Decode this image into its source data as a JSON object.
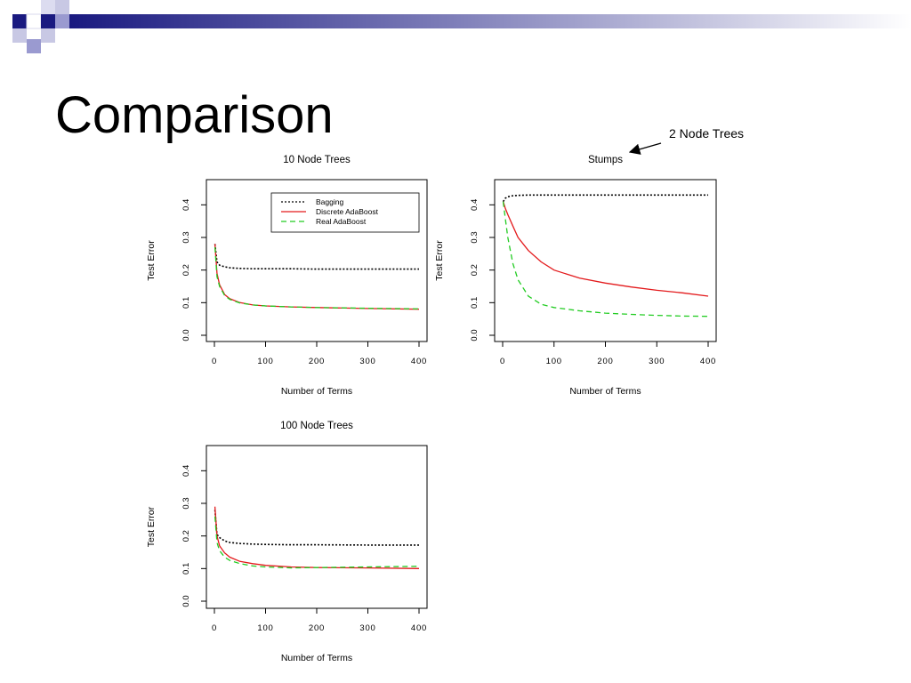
{
  "slide": {
    "title": "Comparison",
    "callout": "2 Node Trees"
  },
  "legend": [
    {
      "name": "Bagging",
      "color": "#000000",
      "style": "dotted"
    },
    {
      "name": "Discrete AdaBoost",
      "color": "#e31a1c",
      "style": "solid"
    },
    {
      "name": "Real AdaBoost",
      "color": "#22cc22",
      "style": "dashed"
    }
  ],
  "chart_data": [
    {
      "type": "line",
      "title": "10 Node Trees",
      "xlabel": "Number of Terms",
      "ylabel": "Test Error",
      "xlim": [
        0,
        400
      ],
      "ylim": [
        0,
        0.45
      ],
      "xticks": [
        "0",
        "100",
        "200",
        "300",
        "400"
      ],
      "yticks": [
        "0.0",
        "0.1",
        "0.2",
        "0.3",
        "0.4"
      ],
      "legend_position": "top-right",
      "grid": false,
      "x": [
        1,
        5,
        10,
        20,
        30,
        50,
        75,
        100,
        150,
        200,
        300,
        400
      ],
      "series": [
        {
          "name": "Bagging",
          "values": [
            0.28,
            0.225,
            0.215,
            0.21,
            0.207,
            0.205,
            0.204,
            0.204,
            0.204,
            0.203,
            0.203,
            0.203
          ]
        },
        {
          "name": "Discrete AdaBoost",
          "values": [
            0.28,
            0.19,
            0.155,
            0.125,
            0.112,
            0.1,
            0.093,
            0.09,
            0.087,
            0.085,
            0.082,
            0.08
          ]
        },
        {
          "name": "Real AdaBoost",
          "values": [
            0.27,
            0.18,
            0.15,
            0.122,
            0.11,
            0.099,
            0.093,
            0.09,
            0.087,
            0.085,
            0.083,
            0.081
          ]
        }
      ]
    },
    {
      "type": "line",
      "title": "Stumps",
      "xlabel": "Number of Terms",
      "ylabel": "Test Error",
      "xlim": [
        0,
        400
      ],
      "ylim": [
        0,
        0.45
      ],
      "xticks": [
        "0",
        "100",
        "200",
        "300",
        "400"
      ],
      "yticks": [
        "0.0",
        "0.1",
        "0.2",
        "0.3",
        "0.4"
      ],
      "grid": false,
      "x": [
        1,
        5,
        10,
        20,
        30,
        50,
        75,
        100,
        150,
        200,
        250,
        300,
        350,
        400
      ],
      "series": [
        {
          "name": "Bagging",
          "values": [
            0.41,
            0.42,
            0.425,
            0.428,
            0.429,
            0.43,
            0.43,
            0.43,
            0.43,
            0.43,
            0.43,
            0.43,
            0.43,
            0.43
          ]
        },
        {
          "name": "Discrete AdaBoost",
          "values": [
            0.41,
            0.39,
            0.37,
            0.335,
            0.3,
            0.26,
            0.225,
            0.2,
            0.175,
            0.16,
            0.148,
            0.138,
            0.13,
            0.12
          ]
        },
        {
          "name": "Real AdaBoost",
          "values": [
            0.41,
            0.36,
            0.3,
            0.22,
            0.17,
            0.12,
            0.095,
            0.085,
            0.075,
            0.068,
            0.064,
            0.061,
            0.059,
            0.058
          ]
        }
      ]
    },
    {
      "type": "line",
      "title": "100 Node Trees",
      "xlabel": "Number of Terms",
      "ylabel": "Test Error",
      "xlim": [
        0,
        400
      ],
      "ylim": [
        0,
        0.45
      ],
      "xticks": [
        "0",
        "100",
        "200",
        "300",
        "400"
      ],
      "yticks": [
        "0.0",
        "0.1",
        "0.2",
        "0.3",
        "0.4"
      ],
      "grid": false,
      "x": [
        1,
        5,
        10,
        20,
        30,
        50,
        75,
        100,
        150,
        200,
        300,
        400
      ],
      "series": [
        {
          "name": "Bagging",
          "values": [
            0.28,
            0.205,
            0.195,
            0.185,
            0.18,
            0.177,
            0.175,
            0.174,
            0.173,
            0.173,
            0.172,
            0.172
          ]
        },
        {
          "name": "Discrete AdaBoost",
          "values": [
            0.29,
            0.2,
            0.17,
            0.148,
            0.135,
            0.122,
            0.115,
            0.11,
            0.105,
            0.103,
            0.102,
            0.1
          ]
        },
        {
          "name": "Real AdaBoost",
          "values": [
            0.26,
            0.18,
            0.155,
            0.135,
            0.125,
            0.115,
            0.108,
            0.105,
            0.102,
            0.103,
            0.105,
            0.107
          ]
        }
      ]
    }
  ]
}
